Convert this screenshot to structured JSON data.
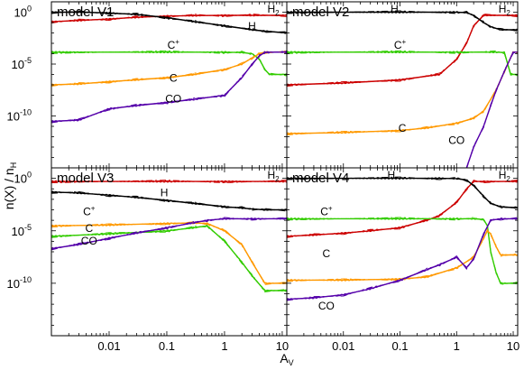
{
  "chart_data": {
    "type": "line",
    "layout": "2x2 panels sharing axes",
    "xlabel": "A_V",
    "ylabel": "n(X) / n_H",
    "xscale": "log",
    "yscale": "log",
    "xlim": [
      0.001,
      12
    ],
    "ylim": [
      1e-15,
      10
    ],
    "xticks": [
      {
        "value": 0.01,
        "label": "0.01"
      },
      {
        "value": 0.1,
        "label": "0.1"
      },
      {
        "value": 1,
        "label": "1"
      },
      {
        "value": 10,
        "label": "10"
      }
    ],
    "yticks": [
      {
        "value": 1,
        "label": "10",
        "exp": "0"
      },
      {
        "value": 1e-05,
        "label": "10",
        "exp": "-5"
      },
      {
        "value": 1e-10,
        "label": "10",
        "exp": "-10"
      }
    ],
    "colors": {
      "H2": "#cc0000",
      "H": "#000000",
      "Cplus": "#33cc00",
      "C": "#ff9900",
      "CO": "#5500aa"
    },
    "panels": [
      {
        "title": "model V1",
        "labels": [
          {
            "text": "H",
            "sub": "2",
            "x": 7.0,
            "y": 0.9
          },
          {
            "text": "H",
            "sub": "",
            "x": 3.0,
            "y": 0.02
          },
          {
            "text": "C",
            "sup": "+",
            "x": 0.13,
            "y": 0.0003
          },
          {
            "text": "C",
            "sub": "",
            "x": 0.13,
            "y": 2e-07
          },
          {
            "text": "CO",
            "sub": "",
            "x": 0.13,
            "y": 2e-09
          }
        ],
        "series": [
          {
            "species": "H2",
            "x": [
              0.001,
              0.003,
              0.01,
              0.03,
              0.1,
              0.3,
              1,
              3,
              12
            ],
            "y": [
              0.12,
              0.16,
              0.22,
              0.32,
              0.42,
              0.47,
              0.5,
              0.5,
              0.5
            ]
          },
          {
            "species": "H",
            "x": [
              0.001,
              0.003,
              0.01,
              0.03,
              0.1,
              0.3,
              1,
              3,
              5,
              12
            ],
            "y": [
              1.0,
              1.0,
              0.85,
              0.6,
              0.3,
              0.12,
              0.05,
              0.02,
              0.015,
              0.01
            ]
          },
          {
            "species": "Cplus",
            "x": [
              0.001,
              0.1,
              1,
              2,
              3,
              4,
              5,
              6,
              12
            ],
            "y": [
              0.00014,
              0.00014,
              0.00014,
              0.00013,
              0.0001,
              3e-05,
              3e-06,
              1e-06,
              1e-06
            ]
          },
          {
            "species": "C",
            "x": [
              0.001,
              0.003,
              0.01,
              0.03,
              0.1,
              0.3,
              1,
              2,
              3,
              4,
              5,
              12
            ],
            "y": [
              1e-07,
              1.2e-07,
              2e-07,
              3e-07,
              5e-07,
              1e-06,
              3e-06,
              1e-05,
              4e-05,
              0.0001,
              0.00014,
              0.00014
            ]
          },
          {
            "species": "CO",
            "x": [
              0.001,
              0.003,
              0.01,
              0.03,
              0.1,
              0.3,
              1,
              2,
              3,
              4,
              5,
              12
            ],
            "y": [
              3e-11,
              4e-11,
              5e-10,
              1e-09,
              2e-09,
              4e-09,
              1e-08,
              5e-07,
              1e-05,
              6e-05,
              0.00014,
              0.00014
            ]
          }
        ]
      },
      {
        "title": "model V2",
        "labels": [
          {
            "text": "H",
            "sub": "2",
            "x": 7.0,
            "y": 0.9
          },
          {
            "text": "H",
            "sub": "",
            "x": 0.08,
            "y": 0.9
          },
          {
            "text": "C",
            "sup": "+",
            "x": 0.1,
            "y": 0.0003
          },
          {
            "text": "C",
            "sub": "",
            "x": 0.11,
            "y": 3e-12
          },
          {
            "text": "CO",
            "sub": "",
            "x": 1.0,
            "y": 2e-13
          }
        ],
        "series": [
          {
            "species": "H2",
            "x": [
              0.001,
              0.01,
              0.1,
              0.5,
              1,
              1.5,
              2,
              3,
              12
            ],
            "y": [
              1e-07,
              1.5e-07,
              3e-07,
              1e-06,
              3e-05,
              0.001,
              0.05,
              0.5,
              0.5
            ]
          },
          {
            "species": "H",
            "x": [
              0.001,
              0.1,
              1,
              1.5,
              2,
              3,
              4,
              6,
              12
            ],
            "y": [
              1.0,
              1.0,
              1.0,
              0.9,
              0.5,
              0.1,
              0.04,
              0.02,
              0.02
            ]
          },
          {
            "species": "Cplus",
            "x": [
              0.001,
              0.1,
              1,
              5,
              7,
              9,
              12
            ],
            "y": [
              0.00014,
              0.00014,
              0.00014,
              0.00014,
              0.00013,
              1e-06,
              1e-06
            ]
          },
          {
            "species": "C",
            "x": [
              0.001,
              0.01,
              0.1,
              0.3,
              1,
              2,
              3,
              5,
              7,
              10,
              12
            ],
            "y": [
              2e-12,
              2.5e-12,
              4e-12,
              7e-12,
              2e-11,
              6e-11,
              3e-10,
              3e-08,
              2e-06,
              0.00014,
              0.00014
            ]
          },
          {
            "species": "CO",
            "x": [
              1.5,
              2,
              3,
              4,
              5,
              7,
              10,
              12
            ],
            "y": [
              1e-15,
              1e-13,
              1e-11,
              1e-09,
              3e-08,
              2e-06,
              0.00014,
              0.00014
            ]
          }
        ]
      },
      {
        "title": "model V3",
        "labels": [
          {
            "text": "H",
            "sub": "2",
            "x": 7.0,
            "y": 0.9
          },
          {
            "text": "H",
            "sub": "",
            "x": 0.09,
            "y": 0.02
          },
          {
            "text": "C",
            "sup": "+",
            "x": 0.0045,
            "y": 0.0003
          },
          {
            "text": "C",
            "sub": "",
            "x": 0.0045,
            "y": 8e-06
          },
          {
            "text": "CO",
            "sub": "",
            "x": 0.0045,
            "y": 5e-07
          }
        ],
        "series": [
          {
            "species": "H2",
            "x": [
              0.001,
              0.1,
              1,
              12
            ],
            "y": [
              0.5,
              0.5,
              0.5,
              0.5
            ]
          },
          {
            "species": "H",
            "x": [
              0.001,
              0.003,
              0.01,
              0.03,
              0.1,
              0.3,
              1,
              2,
              3,
              5,
              12
            ],
            "y": [
              0.05,
              0.04,
              0.025,
              0.015,
              0.008,
              0.004,
              0.002,
              0.0015,
              0.0012,
              0.001,
              0.001
            ]
          },
          {
            "species": "Cplus",
            "x": [
              0.001,
              0.01,
              0.1,
              0.3,
              0.5,
              1,
              2,
              3,
              5,
              12
            ],
            "y": [
              3e-06,
              5e-06,
              1e-05,
              2e-05,
              3e-05,
              1e-06,
              1e-08,
              5e-10,
              2e-11,
              2e-11
            ]
          },
          {
            "species": "C",
            "x": [
              0.001,
              0.01,
              0.1,
              0.3,
              0.5,
              1,
              2,
              3,
              5,
              12
            ],
            "y": [
              3e-05,
              3.5e-05,
              5e-05,
              5.5e-05,
              5e-05,
              1e-05,
              5e-07,
              1e-08,
              1e-10,
              1e-10
            ]
          },
          {
            "species": "CO",
            "x": [
              0.001,
              0.003,
              0.01,
              0.03,
              0.1,
              0.3,
              0.5,
              1,
              3,
              12
            ],
            "y": [
              2e-07,
              5e-07,
              2e-06,
              6e-06,
              2e-05,
              6e-05,
              0.0001,
              0.00014,
              0.00014,
              0.00014
            ]
          }
        ]
      },
      {
        "title": "model V4",
        "labels": [
          {
            "text": "H",
            "sub": "2",
            "x": 7.0,
            "y": 0.9
          },
          {
            "text": "H",
            "sub": "",
            "x": 0.07,
            "y": 0.9
          },
          {
            "text": "C",
            "sup": "+",
            "x": 0.005,
            "y": 0.0003
          },
          {
            "text": "C",
            "sub": "",
            "x": 0.005,
            "y": 3e-08
          },
          {
            "text": "CO",
            "sub": "",
            "x": 0.005,
            "y": 3e-13
          }
        ],
        "series": [
          {
            "species": "H2",
            "x": [
              0.001,
              0.003,
              0.01,
              0.03,
              0.1,
              0.3,
              0.5,
              1,
              1.5,
              2,
              3,
              12
            ],
            "y": [
              3e-06,
              4e-06,
              6e-06,
              1e-05,
              2e-05,
              0.0001,
              0.0003,
              0.005,
              0.1,
              0.5,
              0.5,
              0.5
            ]
          },
          {
            "species": "H",
            "x": [
              0.001,
              0.1,
              0.5,
              1,
              1.5,
              2,
              3,
              4,
              6,
              12
            ],
            "y": [
              1.0,
              1.0,
              1.0,
              0.95,
              0.7,
              0.2,
              0.02,
              0.004,
              0.002,
              0.0015
            ]
          },
          {
            "species": "Cplus",
            "x": [
              0.001,
              0.1,
              1,
              2,
              3,
              3.5,
              4,
              5,
              6,
              12
            ],
            "y": [
              0.00014,
              0.00014,
              0.00014,
              0.00014,
              0.00012,
              3e-05,
              1e-07,
              1e-09,
              1e-10,
              1e-10
            ]
          },
          {
            "species": "C",
            "x": [
              0.001,
              0.01,
              0.1,
              0.3,
              1,
              2,
              3,
              3.5,
              4,
              5,
              6,
              12
            ],
            "y": [
              2e-10,
              2e-10,
              2.5e-10,
              4e-10,
              3e-09,
              3e-08,
              2e-06,
              1e-05,
              5e-06,
              3e-07,
              5e-08,
              5e-08
            ]
          },
          {
            "species": "CO",
            "x": [
              0.001,
              0.003,
              0.01,
              0.03,
              0.1,
              0.3,
              0.5,
              1,
              1.5,
              2,
              3,
              4,
              6,
              12
            ],
            "y": [
              3e-12,
              4e-12,
              8e-12,
              3e-11,
              2e-10,
              2e-09,
              6e-09,
              3e-08,
              3e-09,
              2e-08,
              5e-06,
              0.0001,
              0.00014,
              0.00014
            ]
          }
        ]
      }
    ]
  }
}
